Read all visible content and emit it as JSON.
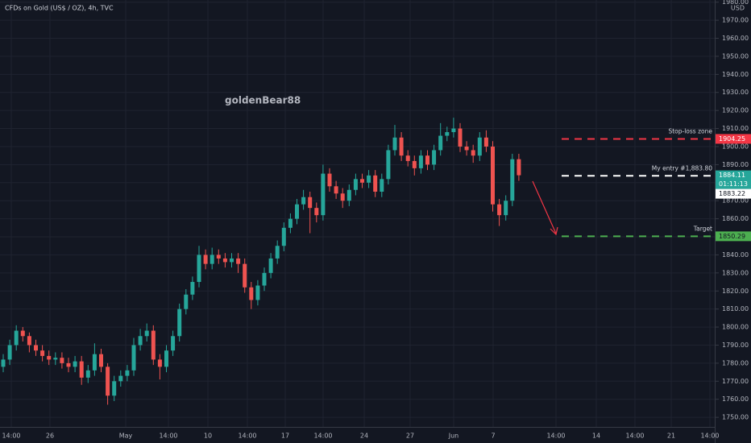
{
  "chart_data": {
    "type": "candlestick",
    "title": "CFDs on Gold (US$ / OZ), 4h, TVC",
    "watermark": "goldenBear88",
    "currency": "USD",
    "up_color": "#26a69a",
    "down_color": "#ef5350",
    "ylim": [
      1744.7,
      1981.2
    ],
    "yticks": [
      {
        "value": 1750,
        "label": "1750.00"
      },
      {
        "value": 1760,
        "label": "1760.00"
      },
      {
        "value": 1770,
        "label": "1770.00"
      },
      {
        "value": 1780,
        "label": "1780.00"
      },
      {
        "value": 1790,
        "label": "1790.00"
      },
      {
        "value": 1800,
        "label": "1800.00"
      },
      {
        "value": 1810,
        "label": "1810.00"
      },
      {
        "value": 1820,
        "label": "1820.00"
      },
      {
        "value": 1830,
        "label": "1830.00"
      },
      {
        "value": 1840,
        "label": "1840.00"
      },
      {
        "value": 1850,
        "label": "1850.00"
      },
      {
        "value": 1860,
        "label": "1860.00"
      },
      {
        "value": 1870,
        "label": "1870.00"
      },
      {
        "value": 1880,
        "label": "1880.00"
      },
      {
        "value": 1890,
        "label": "1890.00"
      },
      {
        "value": 1900,
        "label": "1900.00"
      },
      {
        "value": 1910,
        "label": "1910.00"
      },
      {
        "value": 1920,
        "label": "1920.00"
      },
      {
        "value": 1930,
        "label": "1930.00"
      },
      {
        "value": 1940,
        "label": "1940.00"
      },
      {
        "value": 1950,
        "label": "1950.00"
      },
      {
        "value": 1960,
        "label": "1960.00"
      },
      {
        "value": 1970,
        "label": "1970.00"
      },
      {
        "value": 1980,
        "label": "1980.00"
      }
    ],
    "xtick_labels": [
      "14:00",
      "26",
      "May",
      "14:00",
      "10",
      "14:00",
      "17",
      "14:00",
      "24",
      "27",
      "Jun",
      "7",
      "14:00",
      "14",
      "14:00",
      "21",
      "14:00"
    ],
    "candles": [
      [
        1778,
        1785,
        1775,
        1782
      ],
      [
        1782,
        1793,
        1779,
        1790
      ],
      [
        1790,
        1801,
        1787,
        1798
      ],
      [
        1798,
        1800,
        1792,
        1795
      ],
      [
        1795,
        1797,
        1786,
        1790
      ],
      [
        1790,
        1793,
        1784,
        1787
      ],
      [
        1787,
        1790,
        1781,
        1784
      ],
      [
        1784,
        1787,
        1779,
        1782
      ],
      [
        1782,
        1786,
        1779,
        1783
      ],
      [
        1783,
        1786,
        1777,
        1780
      ],
      [
        1780,
        1783,
        1775,
        1778
      ],
      [
        1778,
        1784,
        1775,
        1781
      ],
      [
        1781,
        1784,
        1768,
        1772
      ],
      [
        1772,
        1779,
        1769,
        1776
      ],
      [
        1776,
        1791,
        1773,
        1785
      ],
      [
        1785,
        1788,
        1775,
        1778
      ],
      [
        1778,
        1780,
        1757,
        1762
      ],
      [
        1762,
        1773,
        1759,
        1770
      ],
      [
        1770,
        1776,
        1767,
        1773
      ],
      [
        1773,
        1779,
        1770,
        1776
      ],
      [
        1776,
        1794,
        1773,
        1790
      ],
      [
        1790,
        1799,
        1787,
        1795
      ],
      [
        1795,
        1802,
        1792,
        1798
      ],
      [
        1798,
        1801,
        1779,
        1782
      ],
      [
        1782,
        1785,
        1771,
        1778
      ],
      [
        1778,
        1790,
        1775,
        1787
      ],
      [
        1787,
        1798,
        1784,
        1795
      ],
      [
        1795,
        1813,
        1792,
        1810
      ],
      [
        1810,
        1821,
        1807,
        1818
      ],
      [
        1818,
        1828,
        1815,
        1825
      ],
      [
        1825,
        1845,
        1822,
        1840
      ],
      [
        1840,
        1843,
        1832,
        1835
      ],
      [
        1835,
        1844,
        1832,
        1840
      ],
      [
        1840,
        1843,
        1835,
        1838
      ],
      [
        1838,
        1841,
        1833,
        1836
      ],
      [
        1836,
        1841,
        1833,
        1838
      ],
      [
        1838,
        1841,
        1830,
        1835
      ],
      [
        1835,
        1838,
        1819,
        1822
      ],
      [
        1822,
        1825,
        1810,
        1815
      ],
      [
        1815,
        1826,
        1812,
        1823
      ],
      [
        1823,
        1833,
        1820,
        1830
      ],
      [
        1830,
        1841,
        1827,
        1838
      ],
      [
        1838,
        1848,
        1835,
        1845
      ],
      [
        1845,
        1858,
        1842,
        1855
      ],
      [
        1855,
        1863,
        1852,
        1860
      ],
      [
        1860,
        1871,
        1857,
        1868
      ],
      [
        1868,
        1876,
        1865,
        1872
      ],
      [
        1872,
        1875,
        1852,
        1866
      ],
      [
        1866,
        1869,
        1858,
        1862
      ],
      [
        1862,
        1890,
        1859,
        1885
      ],
      [
        1885,
        1888,
        1875,
        1878
      ],
      [
        1878,
        1881,
        1871,
        1874
      ],
      [
        1874,
        1877,
        1866,
        1870
      ],
      [
        1870,
        1879,
        1867,
        1876
      ],
      [
        1876,
        1885,
        1873,
        1882
      ],
      [
        1882,
        1885,
        1877,
        1880
      ],
      [
        1880,
        1887,
        1877,
        1884
      ],
      [
        1884,
        1887,
        1872,
        1875
      ],
      [
        1875,
        1885,
        1872,
        1882
      ],
      [
        1882,
        1901,
        1879,
        1898
      ],
      [
        1898,
        1912,
        1895,
        1905
      ],
      [
        1905,
        1908,
        1892,
        1895
      ],
      [
        1895,
        1898,
        1889,
        1892
      ],
      [
        1892,
        1895,
        1884,
        1888
      ],
      [
        1888,
        1898,
        1885,
        1895
      ],
      [
        1895,
        1898,
        1887,
        1890
      ],
      [
        1890,
        1901,
        1887,
        1898
      ],
      [
        1898,
        1913,
        1895,
        1906
      ],
      [
        1906,
        1911,
        1903,
        1908
      ],
      [
        1908,
        1916,
        1905,
        1910
      ],
      [
        1910,
        1913,
        1897,
        1900
      ],
      [
        1900,
        1903,
        1895,
        1898
      ],
      [
        1898,
        1901,
        1891,
        1895
      ],
      [
        1895,
        1908,
        1892,
        1905
      ],
      [
        1905,
        1909,
        1897,
        1900
      ],
      [
        1900,
        1903,
        1864,
        1868
      ],
      [
        1868,
        1871,
        1856,
        1862
      ],
      [
        1862,
        1873,
        1859,
        1870
      ],
      [
        1870,
        1896,
        1867,
        1893
      ],
      [
        1893,
        1896,
        1881,
        1884.11
      ]
    ],
    "countdown": "01:11:13",
    "marker_price": 1883.22,
    "levels": [
      {
        "name": "Stop-loss zone",
        "value": 1904.25,
        "color": "#f23645"
      },
      {
        "name": "My entry #1,883.80",
        "value": 1883.8,
        "color": "#ffffff"
      },
      {
        "name": "Target",
        "value": 1850.29,
        "color": "#4caf50"
      }
    ],
    "arrow_color": "#f23645",
    "watermark_color": "#f5d033"
  }
}
